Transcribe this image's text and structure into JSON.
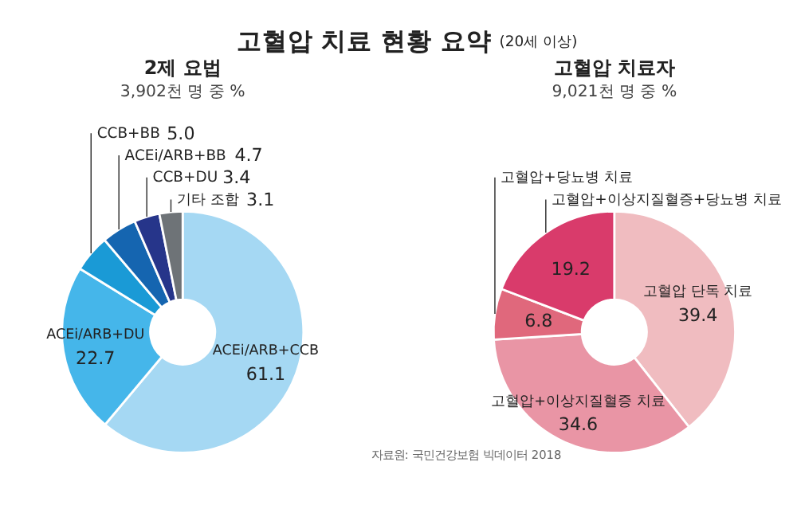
{
  "chart_data": [
    {
      "type": "donut",
      "title": "2제 요법",
      "subtitle": "3,902천 명 중 %",
      "annotations": [
        "고혈압 치료 현황 요약",
        "(20세 이상)"
      ],
      "categories": [
        "ACEi/ARB+CCB",
        "ACEi/ARB+DU",
        "CCB+BB",
        "ACEi/ARB+BB",
        "CCB+DU",
        "기타 조합"
      ],
      "values": [
        61.1,
        22.7,
        5.0,
        4.7,
        3.4,
        3.1
      ],
      "colors": [
        "#a5d8f3",
        "#45b6ea",
        "#1a9ad6",
        "#1565b0",
        "#26358a",
        "#6e7377"
      ],
      "value_labels": [
        "61.1",
        "22.7",
        "5.0",
        "4.7",
        "3.4",
        "3.1"
      ]
    },
    {
      "type": "donut",
      "title": "고혈압 치료자",
      "subtitle": "9,021천 명 중 %",
      "annotations": [
        "자료원: 국민건강보험 빅데이터 2018"
      ],
      "categories": [
        "고혈압 단독 치료",
        "고혈압+이상지질혈증 치료",
        "고혈압+당뇨병 치료",
        "고혈압+이상지질혈증+당뇨병 치료"
      ],
      "values": [
        39.4,
        34.6,
        6.8,
        19.2
      ],
      "colors": [
        "#f0bcc0",
        "#e995a5",
        "#e0687c",
        "#d93b6b"
      ],
      "value_labels": [
        "39.4",
        "34.6",
        "6.8",
        "19.2"
      ]
    }
  ]
}
